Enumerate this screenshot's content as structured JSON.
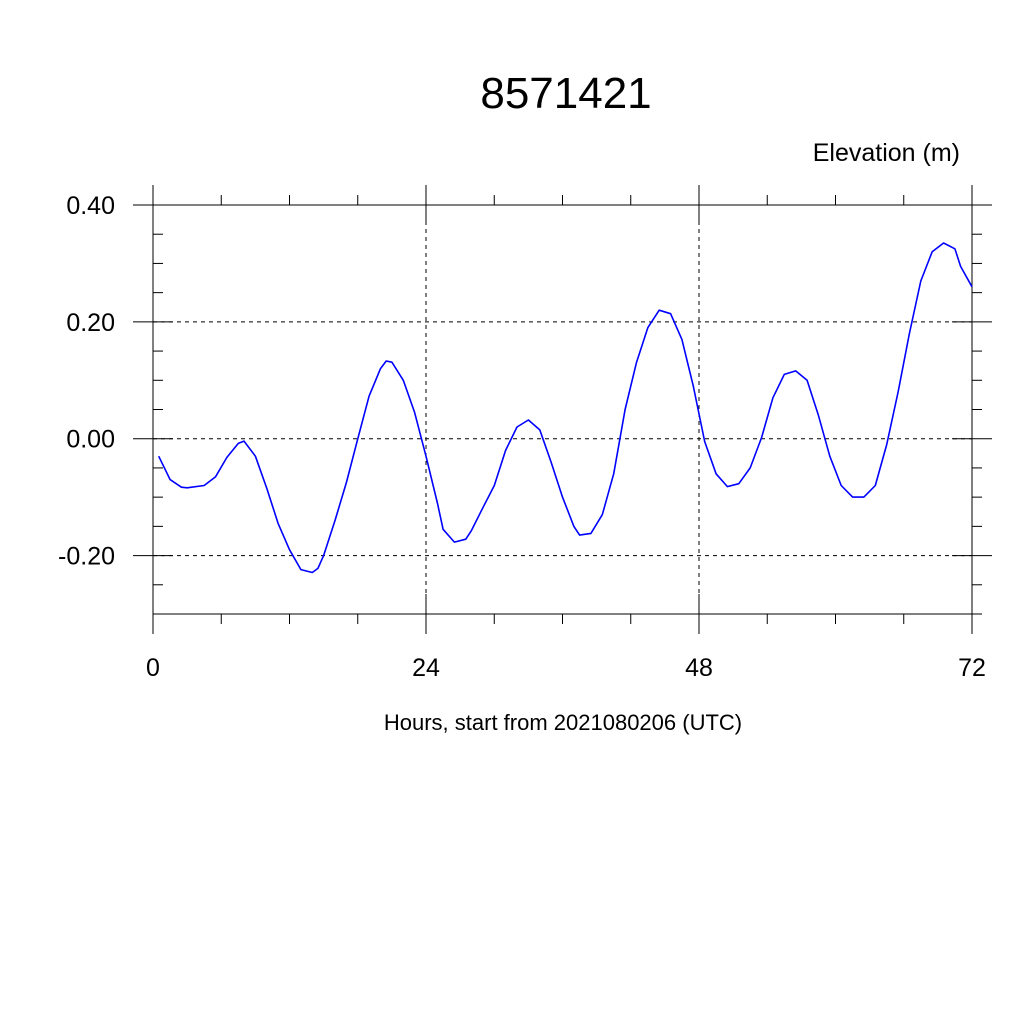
{
  "chart_data": {
    "type": "line",
    "title": "8571421",
    "ylabel": "Elevation (m)",
    "xlabel": "Hours, start from 2021080206 (UTC)",
    "xlim": [
      0,
      72
    ],
    "ylim": [
      -0.3,
      0.4
    ],
    "x_ticks": [
      0,
      24,
      48,
      72
    ],
    "x_tick_labels": [
      "0",
      "24",
      "48",
      "72"
    ],
    "y_ticks": [
      0.4,
      0.2,
      0.0,
      -0.2
    ],
    "y_tick_labels": [
      "0.40",
      "0.20",
      "0.00",
      "-0.20"
    ],
    "grid": true,
    "line_color": "#0000ff",
    "series": [
      {
        "x": [
          0.5,
          1.5,
          2.5,
          3.0,
          4.5,
          5.5,
          6.5,
          7.5,
          8.0,
          9.0,
          10.0,
          11.0,
          12.0,
          13.0,
          14.0,
          14.5,
          15.0,
          16.0,
          17.0,
          18.0,
          19.0,
          20.0,
          20.5,
          21.0,
          22.0,
          23.0,
          24.0,
          25.0,
          25.5,
          26.5,
          27.5,
          28.0,
          29.0,
          30.0,
          31.0,
          32.0,
          33.0,
          34.0,
          35.0,
          36.0,
          37.0,
          37.5,
          38.5,
          39.5,
          40.5,
          41.5,
          42.5,
          43.5,
          44.5,
          45.5,
          46.5,
          47.5,
          48.5,
          49.5,
          50.5,
          51.5,
          52.5,
          53.5,
          54.5,
          55.5,
          56.5,
          57.5,
          58.5,
          59.5,
          60.5,
          61.5,
          62.5,
          63.5,
          64.5,
          65.5,
          66.5,
          67.5,
          68.5,
          69.5,
          70.5,
          71.0,
          72.0
        ],
        "y": [
          -0.03,
          -0.07,
          -0.083,
          -0.084,
          -0.08,
          -0.065,
          -0.032,
          -0.008,
          -0.004,
          -0.03,
          -0.085,
          -0.145,
          -0.19,
          -0.224,
          -0.229,
          -0.222,
          -0.2,
          -0.14,
          -0.075,
          0.0,
          0.073,
          0.12,
          0.133,
          0.131,
          0.1,
          0.045,
          -0.03,
          -0.11,
          -0.155,
          -0.177,
          -0.172,
          -0.157,
          -0.118,
          -0.08,
          -0.02,
          0.02,
          0.032,
          0.015,
          -0.04,
          -0.1,
          -0.15,
          -0.165,
          -0.162,
          -0.13,
          -0.06,
          0.05,
          0.13,
          0.19,
          0.22,
          0.214,
          0.17,
          0.09,
          -0.005,
          -0.06,
          -0.082,
          -0.077,
          -0.05,
          0.002,
          0.07,
          0.11,
          0.116,
          0.1,
          0.04,
          -0.03,
          -0.08,
          -0.1,
          -0.1,
          -0.08,
          -0.01,
          0.08,
          0.18,
          0.27,
          0.32,
          0.335,
          0.325,
          0.295,
          0.26
        ]
      }
    ]
  }
}
